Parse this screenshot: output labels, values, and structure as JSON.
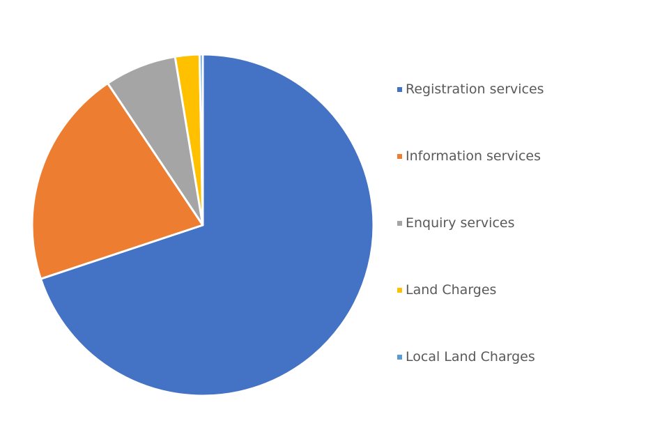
{
  "chart_data": {
    "type": "pie",
    "categories": [
      "Registration services",
      "Information services",
      "Enquiry services",
      "Land Charges",
      "Local Land Charges"
    ],
    "values": [
      69.9,
      20.7,
      6.8,
      2.3,
      0.3
    ],
    "colors": [
      "#4472C4",
      "#ED7D31",
      "#A5A5A5",
      "#FFC000",
      "#5B9BD5"
    ],
    "legend_position": "right"
  }
}
